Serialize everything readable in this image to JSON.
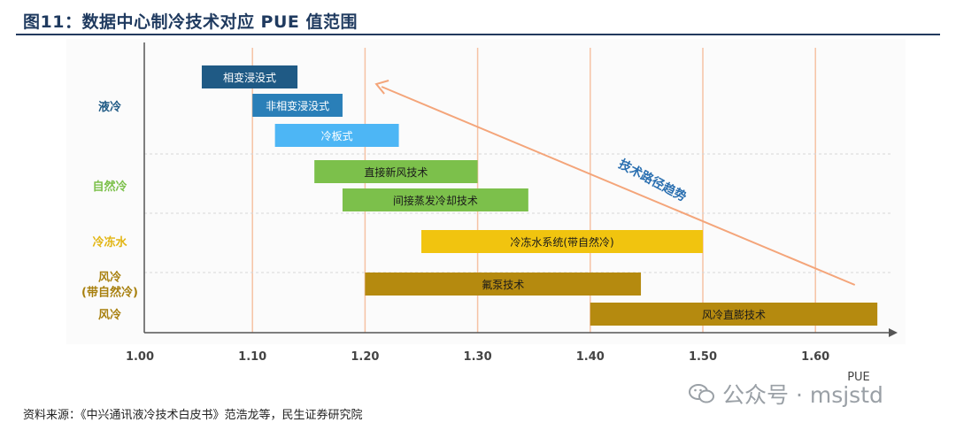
{
  "title": "图11：数据中心制冷技术对应 PUE 值范围",
  "source": "资料来源：《中兴通讯液冷技术白皮书》范浩龙等，民生证券研究院",
  "watermark": "公众号 · msjstd",
  "chart_data": {
    "type": "bar",
    "orientation": "horizontal-range",
    "xlabel": "PUE",
    "xlim": [
      1.0,
      1.65
    ],
    "xticks": [
      "1.00",
      "1.10",
      "1.20",
      "1.30",
      "1.40",
      "1.50",
      "1.60"
    ],
    "grid": true,
    "categories": [
      {
        "label": "液冷",
        "rows": [
          0,
          1,
          2
        ]
      },
      {
        "label": "自然冷",
        "rows": [
          3,
          4
        ]
      },
      {
        "label": "冷冻水",
        "rows": [
          5
        ]
      },
      {
        "label": "风冷\n(带自然冷)",
        "rows": [
          6
        ]
      },
      {
        "label": "风冷",
        "rows": [
          7
        ]
      }
    ],
    "bars": [
      {
        "label": "相变浸没式",
        "start": 1.055,
        "end": 1.14,
        "color": "#1f5a85",
        "text_color": "#ffffff"
      },
      {
        "label": "非相变浸没式",
        "start": 1.1,
        "end": 1.18,
        "color": "#2a7fb8",
        "text_color": "#ffffff"
      },
      {
        "label": "冷板式",
        "start": 1.12,
        "end": 1.23,
        "color": "#4db6f5",
        "text_color": "#ffffff"
      },
      {
        "label": "直接新风技术",
        "start": 1.155,
        "end": 1.3,
        "color": "#7cc04b",
        "text_color": "#1a1a1a"
      },
      {
        "label": "间接蒸发冷却技术",
        "start": 1.18,
        "end": 1.345,
        "color": "#7cc04b",
        "text_color": "#1a1a1a"
      },
      {
        "label": "冷冻水系统(带自然冷)",
        "start": 1.25,
        "end": 1.5,
        "color": "#f1c40f",
        "text_color": "#1a1a1a"
      },
      {
        "label": "氟泵技术",
        "start": 1.2,
        "end": 1.445,
        "color": "#b58a0f",
        "text_color": "#1a1a1a"
      },
      {
        "label": "风冷直膨技术",
        "start": 1.4,
        "end": 1.655,
        "color": "#b58a0f",
        "text_color": "#1a1a1a"
      }
    ],
    "category_colors": [
      "#1f5a85",
      "#7cc04b",
      "#e2b512",
      "#a8800f",
      "#a8800f"
    ],
    "annotation": {
      "text": "技术路径趋势",
      "color": "#2a6fb0",
      "arrow_color": "#f4a57a",
      "from_x": 1.635,
      "to_x": 1.21
    }
  }
}
